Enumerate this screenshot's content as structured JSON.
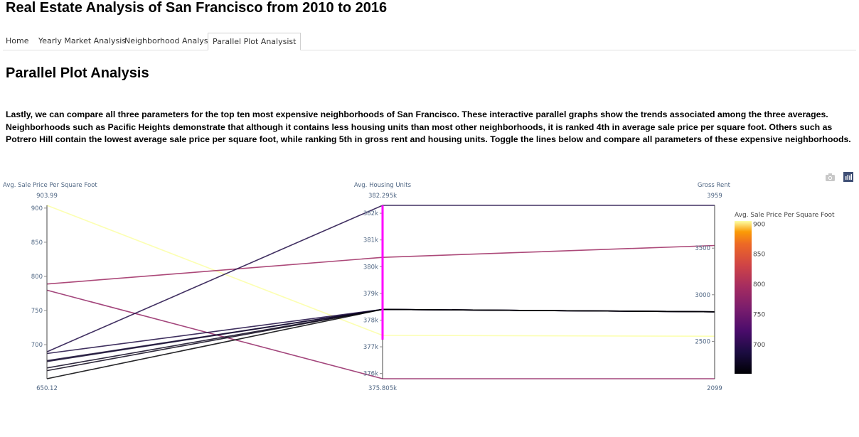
{
  "app_title": "Real Estate Analysis of San Francisco from 2010 to 2016",
  "tabs": [
    {
      "label": "Home",
      "active": false
    },
    {
      "label": "Yearly Market Analysis",
      "active": false
    },
    {
      "label": "Neighborhood Analysis",
      "active": false
    },
    {
      "label": "Parallel Plot Analysist",
      "active": true
    }
  ],
  "page_title": "Parallel Plot Analysis",
  "description": "Lastly, we can compare all three parameters for the top ten most expensive neighborhoods of San Francisco. These interactive parallel graphs show the trends associated among the three averages. Neighborhoods such as Pacific Heights demonstrate that although it contains less housing units than most other neighborhoods, it is ranked 4th in average sale price per square foot. Others such as Potrero Hill contain the lowest average sale price per square foot, while ranking 5th in gross rent and housing units. Toggle the lines below and compare all parameters of these expensive neighborhoods.",
  "modebar": {
    "camera_icon": "camera-icon",
    "plotly_icon": "plotly-logo-icon"
  },
  "chart_data": {
    "type": "parallel_coordinates",
    "dimensions": [
      {
        "label": "Avg. Sale Price Per Square Foot",
        "range": [
          650.12,
          903.99
        ],
        "range_labels": {
          "max": "903.99",
          "min": "650.12"
        },
        "ticks": [
          700,
          750,
          800,
          850,
          900
        ],
        "tick_labels": [
          "700",
          "750",
          "800",
          "850",
          "900"
        ]
      },
      {
        "label": "Avg. Housing Units",
        "range": [
          375805,
          382295
        ],
        "range_labels": {
          "max": "382.295k",
          "min": "375.805k"
        },
        "ticks": [
          376000,
          377000,
          378000,
          379000,
          380000,
          381000,
          382000
        ],
        "tick_labels": [
          "376k",
          "377k",
          "378k",
          "379k",
          "380k",
          "381k",
          "382k"
        ],
        "selected": true
      },
      {
        "label": "Gross Rent",
        "range": [
          2099,
          3959
        ],
        "range_labels": {
          "max": "3959",
          "min": "2099"
        },
        "ticks": [
          2500,
          3000,
          3500
        ],
        "tick_labels": [
          "2500",
          "3000",
          "3500"
        ]
      }
    ],
    "lines": [
      {
        "price": 903.99,
        "units": 377427,
        "rent": 2555
      },
      {
        "price": 788.84,
        "units": 380348,
        "rent": 3528
      },
      {
        "price": 779.81,
        "units": 375805,
        "rent": 2099
      },
      {
        "price": 689.56,
        "units": 382295,
        "rent": 3959
      },
      {
        "price": 687.09,
        "units": 378401,
        "rent": 2817
      },
      {
        "price": 676.51,
        "units": 378401,
        "rent": 2817
      },
      {
        "price": 675.35,
        "units": 378401,
        "rent": 2817
      },
      {
        "price": 665.96,
        "units": 378401,
        "rent": 2817
      },
      {
        "price": 662.01,
        "units": 378401,
        "rent": 2817
      },
      {
        "price": 650.12,
        "units": 378401,
        "rent": 2817
      }
    ],
    "colorbar": {
      "title": "Avg. Sale Price Per Square Foot",
      "ticks": [
        700,
        750,
        800,
        850,
        900
      ],
      "tick_labels": [
        "700",
        "750",
        "800",
        "850",
        "900"
      ],
      "colorscale": "inferno"
    }
  }
}
